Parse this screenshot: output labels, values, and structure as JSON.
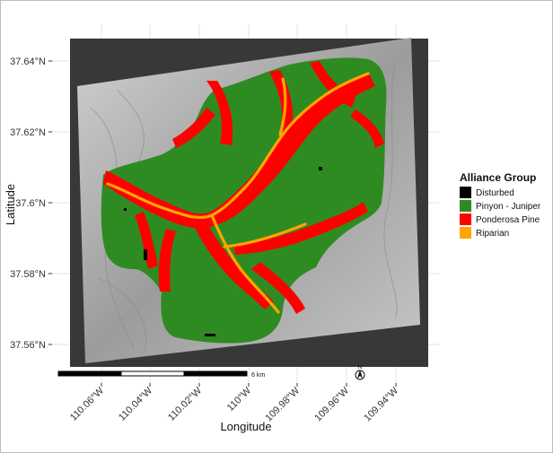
{
  "map": {
    "y_axis_title": "Latitude",
    "x_axis_title": "Longitude",
    "y_ticks": [
      "37.64°N",
      "37.62°N",
      "37.6°N",
      "37.58°N",
      "37.56°N"
    ],
    "x_ticks": [
      "110.06°W",
      "110.04°W",
      "110.02°W",
      "110°W",
      "109.98°W",
      "109.96°W",
      "109.94°W"
    ],
    "scalebar_label": "6 km",
    "north_arrow_label": "N"
  },
  "legend": {
    "title": "Alliance Group",
    "items": [
      {
        "label": "Disturbed",
        "color": "#000000"
      },
      {
        "label": "Pinyon - Juniper",
        "color": "#2e8b22"
      },
      {
        "label": "Ponderosa Pine",
        "color": "#ff0000"
      },
      {
        "label": "Riparian",
        "color": "#ffa500"
      }
    ]
  },
  "colors": {
    "panel": "#383838",
    "hillshade": "#a8a8a8",
    "grid": "#e0e0e0"
  }
}
